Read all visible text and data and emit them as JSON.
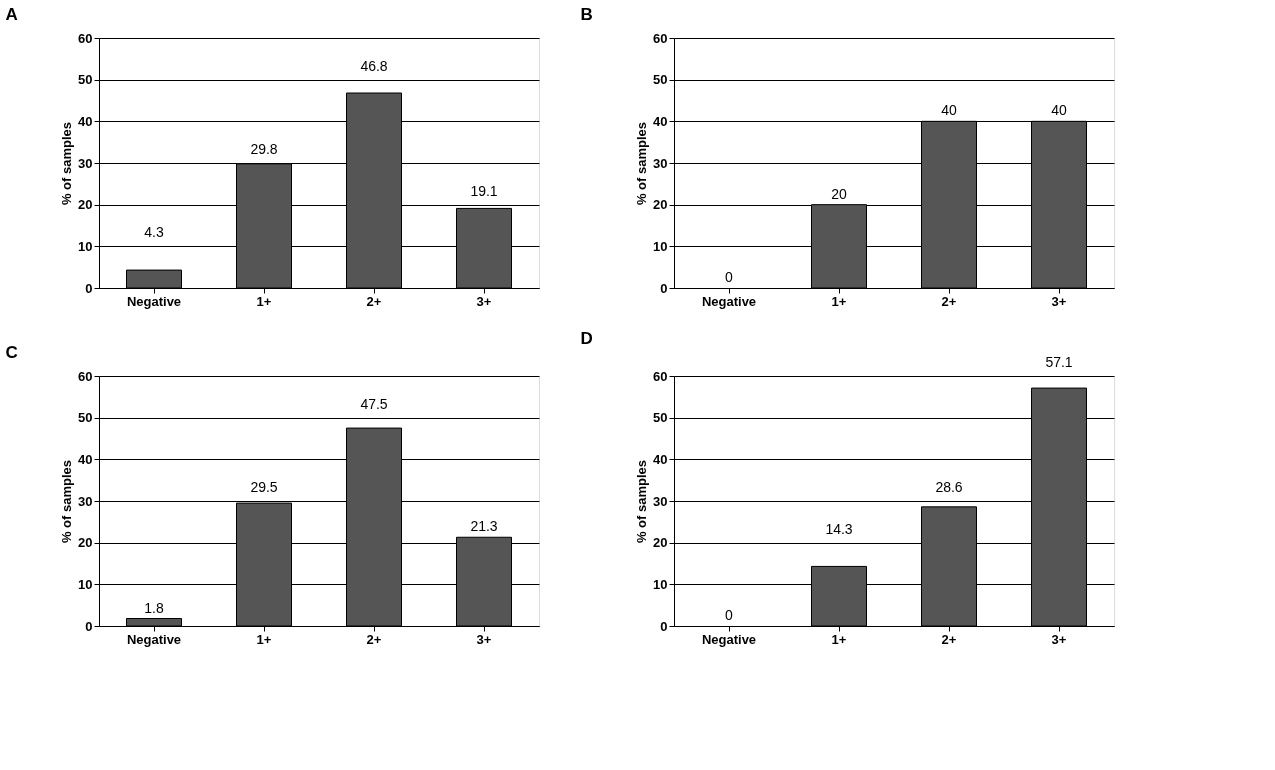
{
  "chart_data": [
    {
      "type": "bar",
      "title": "A",
      "ylabel": "% of samples",
      "categories": [
        "Negative",
        "1+",
        "2+",
        "3+"
      ],
      "values": [
        4.3,
        29.8,
        46.8,
        19.1
      ],
      "color": "#555555",
      "ylim": [
        0,
        60
      ],
      "yticks": [
        0,
        10,
        20,
        30,
        40,
        50,
        60
      ],
      "grid": "y",
      "data_labels": true
    },
    {
      "type": "bar",
      "title": "B",
      "ylabel": "% of samples",
      "categories": [
        "Negative",
        "1+",
        "2+",
        "3+"
      ],
      "values": [
        0,
        20,
        40,
        40
      ],
      "color": "#555555",
      "ylim": [
        0,
        60
      ],
      "yticks": [
        0,
        10,
        20,
        30,
        40,
        50,
        60
      ],
      "grid": "y",
      "data_labels": true
    },
    {
      "type": "bar",
      "title": "C",
      "ylabel": "% of samples",
      "categories": [
        "Negative",
        "1+",
        "2+",
        "3+"
      ],
      "values": [
        1.8,
        29.5,
        47.5,
        21.3
      ],
      "color": "#555555",
      "ylim": [
        0,
        60
      ],
      "yticks": [
        0,
        10,
        20,
        30,
        40,
        50,
        60
      ],
      "grid": "y",
      "data_labels": true
    },
    {
      "type": "bar",
      "title": "D",
      "ylabel": "% of samples",
      "categories": [
        "Negative",
        "1+",
        "2+",
        "3+"
      ],
      "values": [
        0,
        14.3,
        28.6,
        57.1
      ],
      "color": "#555555",
      "ylim": [
        0,
        60
      ],
      "yticks": [
        0,
        10,
        20,
        30,
        40,
        50,
        60
      ],
      "grid": "y",
      "data_labels": true
    }
  ]
}
